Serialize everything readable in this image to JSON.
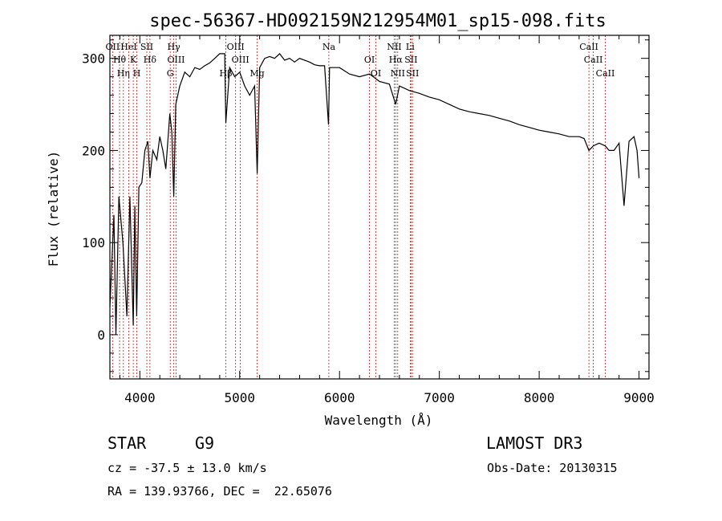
{
  "chart_data": {
    "type": "line",
    "title": "spec-56367-HD092159N212954M01_sp15-098.fits",
    "xlabel": "Wavelength (Å)",
    "ylabel": "Flux (relative)",
    "xlim": [
      3700,
      9100
    ],
    "ylim": [
      -48,
      325
    ],
    "xticks": [
      "4000",
      "5000",
      "6000",
      "7000",
      "8000",
      "9000"
    ],
    "yticks": [
      "0",
      "100",
      "200",
      "300"
    ],
    "grid": false,
    "series": [
      {
        "x": [
          3700,
          3740,
          3760,
          3790,
          3830,
          3870,
          3900,
          3934,
          3950,
          3968,
          3990,
          4020,
          4050,
          4080,
          4101,
          4130,
          4170,
          4200,
          4230,
          4260,
          4300,
          4320,
          4340,
          4360,
          4400,
          4450,
          4500,
          4550,
          4600,
          4650,
          4700,
          4750,
          4800,
          4850,
          4861,
          4900,
          4950,
          5000,
          5050,
          5100,
          5150,
          5175,
          5200,
          5250,
          5300,
          5350,
          5400,
          5450,
          5500,
          5550,
          5600,
          5650,
          5700,
          5750,
          5800,
          5850,
          5890,
          5900,
          5950,
          6000,
          6100,
          6200,
          6300,
          6400,
          6500,
          6562,
          6600,
          6700,
          6800,
          6900,
          7000,
          7100,
          7200,
          7300,
          7400,
          7500,
          7600,
          7700,
          7800,
          7900,
          8000,
          8100,
          8200,
          8300,
          8400,
          8450,
          8498,
          8542,
          8600,
          8662,
          8700,
          8750,
          8800,
          8850,
          8900,
          8950,
          8980,
          9000
        ],
        "y": [
          30,
          130,
          0,
          150,
          100,
          20,
          150,
          10,
          140,
          20,
          160,
          165,
          200,
          210,
          170,
          200,
          190,
          215,
          200,
          180,
          240,
          220,
          150,
          250,
          270,
          285,
          280,
          290,
          288,
          292,
          295,
          300,
          305,
          305,
          230,
          290,
          280,
          285,
          270,
          260,
          270,
          175,
          290,
          300,
          302,
          300,
          305,
          298,
          300,
          296,
          300,
          298,
          296,
          293,
          292,
          292,
          228,
          290,
          290,
          290,
          283,
          280,
          283,
          275,
          272,
          250,
          270,
          265,
          262,
          258,
          255,
          250,
          245,
          242,
          240,
          238,
          235,
          232,
          228,
          225,
          222,
          220,
          218,
          215,
          215,
          213,
          200,
          205,
          208,
          205,
          200,
          200,
          208,
          140,
          210,
          215,
          200,
          170
        ]
      }
    ],
    "lines": [
      {
        "x": 3727,
        "label": "OII"
      },
      {
        "x": 3797,
        "label": "Hθ"
      },
      {
        "x": 3835,
        "label": "Hη"
      },
      {
        "x": 3889,
        "label": "HeI"
      },
      {
        "x": 3934,
        "label": "K"
      },
      {
        "x": 3970,
        "label": "H"
      },
      {
        "x": 4070,
        "label": "SII"
      },
      {
        "x": 4101,
        "label": "Hδ"
      },
      {
        "x": 4304,
        "label": "G"
      },
      {
        "x": 4340,
        "label": "Hγ"
      },
      {
        "x": 4363,
        "label": "OIII"
      },
      {
        "x": 4861,
        "label": "Hβ"
      },
      {
        "x": 4959,
        "label": "OIII"
      },
      {
        "x": 5007,
        "label": "OIII"
      },
      {
        "x": 5175,
        "label": "Mg"
      },
      {
        "x": 5893,
        "label": "Na"
      },
      {
        "x": 6300,
        "label": "OI"
      },
      {
        "x": 6364,
        "label": "OI"
      },
      {
        "x": 6548,
        "label": "NII"
      },
      {
        "x": 6563,
        "label": "Hα"
      },
      {
        "x": 6583,
        "label": "NII"
      },
      {
        "x": 6708,
        "label": "Li"
      },
      {
        "x": 6716,
        "label": "SII"
      },
      {
        "x": 6731,
        "label": "SII"
      },
      {
        "x": 8498,
        "label": "CaII"
      },
      {
        "x": 8542,
        "label": "CaII"
      },
      {
        "x": 8662,
        "label": "CaII"
      }
    ],
    "colors": {
      "spectrum": "#000000",
      "line_marker": "#b22222",
      "frame": "#000000"
    }
  },
  "info": {
    "class": "STAR",
    "subclass": "G9",
    "survey": "LAMOST DR3",
    "cz": "cz = -37.5 ± 13.0 km/s",
    "obsdate": "Obs-Date: 20130315",
    "radec": "RA = 139.93766, DEC =  22.65076"
  }
}
